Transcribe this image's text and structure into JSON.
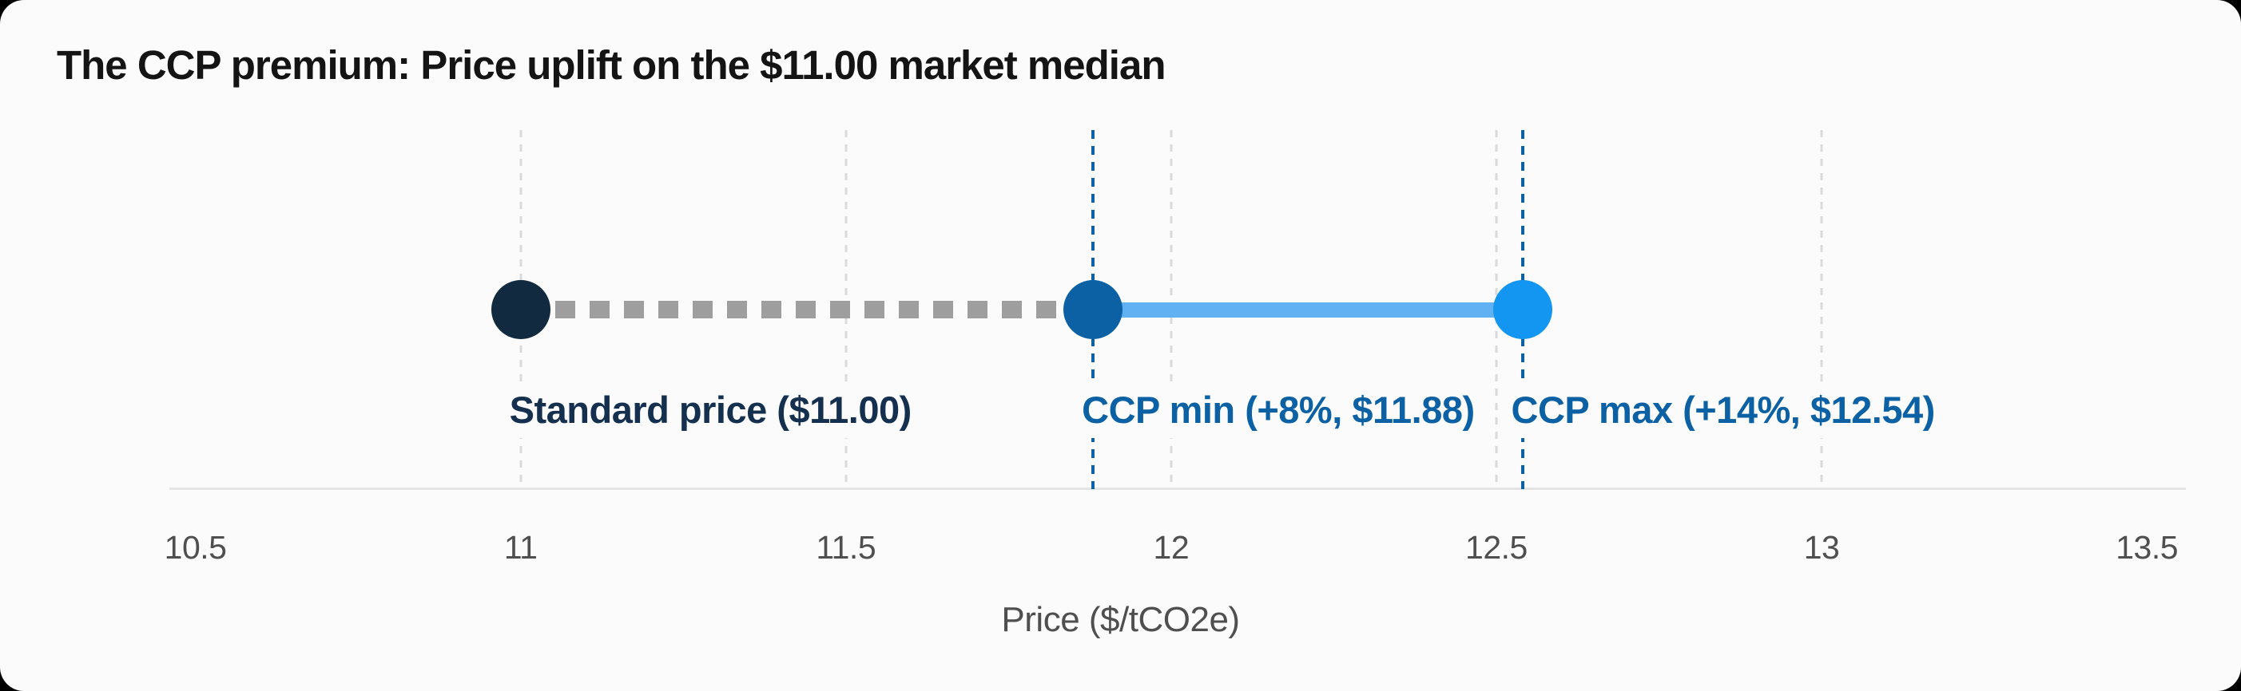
{
  "page": {
    "outside_background": "#000000",
    "card_background": "#fbfbfb"
  },
  "header": {
    "title": "The CCP premium: Price uplift on the $11.00 market median"
  },
  "chart_data": {
    "type": "scatter",
    "subtype": "dumbbell-dot-plot",
    "title": "The CCP premium: Price uplift on the $11.00 market median",
    "xlabel": "Price ($/tCO2e)",
    "ylabel": "",
    "legend": false,
    "grid": "vertical-dashed",
    "x_axis": {
      "min": 10.46,
      "max": 13.56,
      "ticks": [
        10.5,
        11,
        11.5,
        12,
        12.5,
        13,
        13.5
      ],
      "tick_labels": [
        "10.5",
        "11",
        "11.5",
        "12",
        "12.5",
        "13",
        "13.5"
      ],
      "gridlines_at": [
        11,
        11.5,
        12,
        12.5,
        13
      ],
      "gridline_color": "#dadada",
      "axis_line_color": "#e4e4e4",
      "tick_label_color": "#4f4f4f"
    },
    "points": [
      {
        "id": "standard",
        "x": 11.0,
        "label": "Standard price ($11.00)",
        "dot_color": "#122a40",
        "label_color": "#14304e",
        "guide_line": false,
        "guide_color": null
      },
      {
        "id": "ccp-min",
        "x": 11.88,
        "label": "CCP min (+8%, $11.88)",
        "dot_color": "#0b61a4",
        "label_color": "#0b61a4",
        "guide_line": true,
        "guide_color": "#0b61a4"
      },
      {
        "id": "ccp-max",
        "x": 12.54,
        "label": "CCP max (+14%, $12.54)",
        "dot_color": "#1396f2",
        "label_color": "#0b61a4",
        "guide_line": true,
        "guide_color": "#0b61a4"
      }
    ],
    "segments": [
      {
        "from": 11.0,
        "to": 11.88,
        "style": "dashed",
        "color": "#9e9e9e"
      },
      {
        "from": 11.88,
        "to": 12.54,
        "style": "solid",
        "color": "#5fb1f4"
      }
    ]
  }
}
